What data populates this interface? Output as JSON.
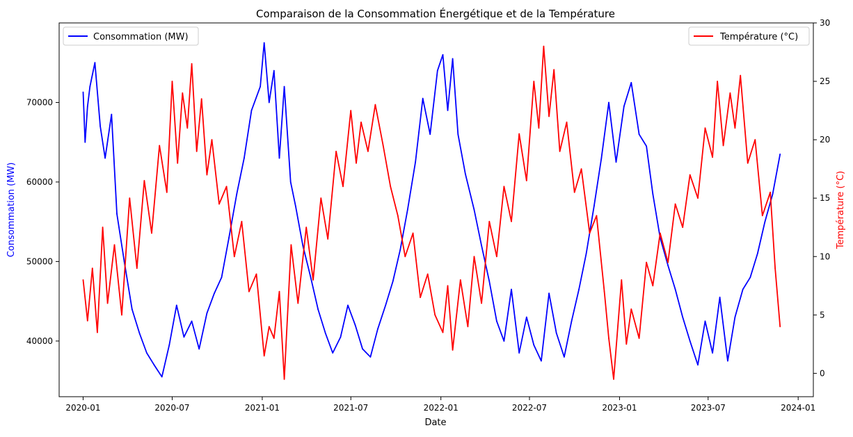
{
  "chart_data": {
    "type": "line",
    "title": "Comparaison de la Consommation Énergétique et de la Température",
    "xlabel": "Date",
    "ylabel_left": "Consommation (MW)",
    "ylabel_right": "Température (°C)",
    "x_ticks": [
      "2020-01",
      "2020-07",
      "2021-01",
      "2021-07",
      "2022-01",
      "2022-07",
      "2023-01",
      "2023-07",
      "2024-01"
    ],
    "y_left_ticks": [
      40000,
      50000,
      60000,
      70000
    ],
    "y_right_ticks": [
      0,
      5,
      10,
      15,
      20,
      25,
      30
    ],
    "x_range": [
      "2019-11-13",
      "2024-02-01"
    ],
    "y_left_range": [
      33000,
      80000
    ],
    "y_right_range": [
      -2,
      30
    ],
    "grid": false,
    "legend_left": {
      "label": "Consommation (MW)",
      "placement": "upper left"
    },
    "legend_right": {
      "label": "Température (°C)",
      "placement": "upper right"
    },
    "colors": {
      "consumption": "#0000ff",
      "temperature": "#ff0000"
    },
    "series": [
      {
        "name": "Consommation (MW)",
        "axis": "left",
        "color": "#0000ff",
        "values": [
          [
            "2020-01-01",
            71300
          ],
          [
            "2020-01-05",
            65000
          ],
          [
            "2020-01-10",
            69500
          ],
          [
            "2020-01-15",
            72000
          ],
          [
            "2020-01-25",
            75000
          ],
          [
            "2020-02-05",
            67000
          ],
          [
            "2020-02-15",
            63000
          ],
          [
            "2020-02-28",
            68500
          ],
          [
            "2020-03-10",
            56000
          ],
          [
            "2020-03-25",
            50000
          ],
          [
            "2020-04-10",
            44000
          ],
          [
            "2020-04-25",
            41000
          ],
          [
            "2020-05-10",
            38500
          ],
          [
            "2020-05-25",
            37000
          ],
          [
            "2020-06-10",
            35500
          ],
          [
            "2020-06-25",
            39500
          ],
          [
            "2020-07-10",
            44500
          ],
          [
            "2020-07-25",
            40500
          ],
          [
            "2020-08-10",
            42500
          ],
          [
            "2020-08-25",
            39000
          ],
          [
            "2020-09-10",
            43500
          ],
          [
            "2020-09-25",
            46000
          ],
          [
            "2020-10-10",
            48000
          ],
          [
            "2020-10-25",
            53000
          ],
          [
            "2020-11-10",
            58500
          ],
          [
            "2020-11-25",
            63000
          ],
          [
            "2020-12-10",
            69000
          ],
          [
            "2020-12-28",
            72000
          ],
          [
            "2021-01-05",
            77500
          ],
          [
            "2021-01-15",
            70000
          ],
          [
            "2021-01-25",
            74000
          ],
          [
            "2021-02-05",
            63000
          ],
          [
            "2021-02-15",
            72000
          ],
          [
            "2021-02-28",
            60000
          ],
          [
            "2021-03-10",
            57000
          ],
          [
            "2021-03-25",
            52000
          ],
          [
            "2021-04-10",
            48000
          ],
          [
            "2021-04-25",
            44000
          ],
          [
            "2021-05-10",
            41000
          ],
          [
            "2021-05-25",
            38500
          ],
          [
            "2021-06-10",
            40500
          ],
          [
            "2021-06-25",
            44500
          ],
          [
            "2021-07-10",
            42000
          ],
          [
            "2021-07-25",
            39000
          ],
          [
            "2021-08-10",
            38000
          ],
          [
            "2021-08-25",
            41500
          ],
          [
            "2021-09-10",
            44500
          ],
          [
            "2021-09-25",
            47500
          ],
          [
            "2021-10-10",
            51500
          ],
          [
            "2021-10-25",
            56500
          ],
          [
            "2021-11-10",
            62500
          ],
          [
            "2021-11-25",
            70500
          ],
          [
            "2021-12-10",
            66000
          ],
          [
            "2021-12-25",
            74000
          ],
          [
            "2022-01-05",
            76000
          ],
          [
            "2022-01-15",
            69000
          ],
          [
            "2022-01-25",
            75500
          ],
          [
            "2022-02-05",
            66000
          ],
          [
            "2022-02-20",
            61000
          ],
          [
            "2022-03-10",
            56500
          ],
          [
            "2022-03-25",
            52000
          ],
          [
            "2022-04-10",
            47500
          ],
          [
            "2022-04-25",
            42500
          ],
          [
            "2022-05-10",
            40000
          ],
          [
            "2022-05-25",
            46500
          ],
          [
            "2022-06-10",
            38500
          ],
          [
            "2022-06-25",
            43000
          ],
          [
            "2022-07-10",
            39500
          ],
          [
            "2022-07-25",
            37500
          ],
          [
            "2022-08-10",
            46000
          ],
          [
            "2022-08-25",
            41000
          ],
          [
            "2022-09-10",
            38000
          ],
          [
            "2022-09-25",
            42500
          ],
          [
            "2022-10-10",
            46500
          ],
          [
            "2022-10-25",
            51000
          ],
          [
            "2022-11-10",
            57000
          ],
          [
            "2022-11-25",
            63000
          ],
          [
            "2022-12-10",
            70000
          ],
          [
            "2022-12-25",
            62500
          ],
          [
            "2023-01-10",
            69500
          ],
          [
            "2023-01-25",
            72500
          ],
          [
            "2023-02-10",
            66000
          ],
          [
            "2023-02-25",
            64500
          ],
          [
            "2023-03-10",
            58500
          ],
          [
            "2023-03-25",
            53000
          ],
          [
            "2023-04-10",
            49500
          ],
          [
            "2023-04-25",
            46500
          ],
          [
            "2023-05-10",
            43000
          ],
          [
            "2023-05-25",
            40000
          ],
          [
            "2023-06-10",
            37000
          ],
          [
            "2023-06-25",
            42500
          ],
          [
            "2023-07-10",
            38500
          ],
          [
            "2023-07-25",
            45500
          ],
          [
            "2023-08-10",
            37500
          ],
          [
            "2023-08-25",
            43000
          ],
          [
            "2023-09-10",
            46500
          ],
          [
            "2023-09-25",
            48000
          ],
          [
            "2023-10-10",
            51000
          ],
          [
            "2023-10-25",
            55000
          ],
          [
            "2023-11-10",
            58500
          ],
          [
            "2023-11-25",
            63500
          ]
        ]
      },
      {
        "name": "Température (°C)",
        "axis": "right",
        "color": "#ff0000",
        "values": [
          [
            "2020-01-01",
            8
          ],
          [
            "2020-01-10",
            4.5
          ],
          [
            "2020-01-20",
            9
          ],
          [
            "2020-01-30",
            3.5
          ],
          [
            "2020-02-10",
            12.5
          ],
          [
            "2020-02-20",
            6
          ],
          [
            "2020-03-05",
            11
          ],
          [
            "2020-03-20",
            5
          ],
          [
            "2020-04-05",
            15
          ],
          [
            "2020-04-20",
            9
          ],
          [
            "2020-05-05",
            16.5
          ],
          [
            "2020-05-20",
            12
          ],
          [
            "2020-06-05",
            19.5
          ],
          [
            "2020-06-20",
            15.5
          ],
          [
            "2020-07-01",
            25
          ],
          [
            "2020-07-12",
            18
          ],
          [
            "2020-07-22",
            24
          ],
          [
            "2020-08-01",
            21
          ],
          [
            "2020-08-10",
            26.5
          ],
          [
            "2020-08-20",
            19
          ],
          [
            "2020-08-30",
            23.5
          ],
          [
            "2020-09-10",
            17
          ],
          [
            "2020-09-20",
            20
          ],
          [
            "2020-10-05",
            14.5
          ],
          [
            "2020-10-20",
            16
          ],
          [
            "2020-11-05",
            10
          ],
          [
            "2020-11-20",
            13
          ],
          [
            "2020-12-05",
            7
          ],
          [
            "2020-12-20",
            8.5
          ],
          [
            "2021-01-05",
            1.5
          ],
          [
            "2021-01-15",
            4
          ],
          [
            "2021-01-25",
            3
          ],
          [
            "2021-02-05",
            7
          ],
          [
            "2021-02-15",
            -0.5
          ],
          [
            "2021-03-01",
            11
          ],
          [
            "2021-03-15",
            6
          ],
          [
            "2021-04-01",
            12.5
          ],
          [
            "2021-04-15",
            8
          ],
          [
            "2021-05-01",
            15
          ],
          [
            "2021-05-15",
            11.5
          ],
          [
            "2021-06-01",
            19
          ],
          [
            "2021-06-15",
            16
          ],
          [
            "2021-07-01",
            22.5
          ],
          [
            "2021-07-12",
            18
          ],
          [
            "2021-07-22",
            21.5
          ],
          [
            "2021-08-05",
            19
          ],
          [
            "2021-08-20",
            23
          ],
          [
            "2021-09-05",
            19.5
          ],
          [
            "2021-09-20",
            16
          ],
          [
            "2021-10-05",
            13.5
          ],
          [
            "2021-10-20",
            10
          ],
          [
            "2021-11-05",
            12
          ],
          [
            "2021-11-20",
            6.5
          ],
          [
            "2021-12-05",
            8.5
          ],
          [
            "2021-12-20",
            5
          ],
          [
            "2022-01-05",
            3.5
          ],
          [
            "2022-01-15",
            7.5
          ],
          [
            "2022-01-25",
            2
          ],
          [
            "2022-02-10",
            8
          ],
          [
            "2022-02-25",
            4
          ],
          [
            "2022-03-10",
            10
          ],
          [
            "2022-03-25",
            6
          ],
          [
            "2022-04-10",
            13
          ],
          [
            "2022-04-25",
            10
          ],
          [
            "2022-05-10",
            16
          ],
          [
            "2022-05-25",
            13
          ],
          [
            "2022-06-10",
            20.5
          ],
          [
            "2022-06-25",
            16.5
          ],
          [
            "2022-07-10",
            25
          ],
          [
            "2022-07-20",
            21
          ],
          [
            "2022-07-30",
            28
          ],
          [
            "2022-08-10",
            22
          ],
          [
            "2022-08-20",
            26
          ],
          [
            "2022-09-01",
            19
          ],
          [
            "2022-09-15",
            21.5
          ],
          [
            "2022-10-01",
            15.5
          ],
          [
            "2022-10-15",
            17.5
          ],
          [
            "2022-11-01",
            12
          ],
          [
            "2022-11-15",
            13.5
          ],
          [
            "2022-12-01",
            7
          ],
          [
            "2022-12-10",
            3
          ],
          [
            "2022-12-20",
            -0.5
          ],
          [
            "2023-01-05",
            8
          ],
          [
            "2023-01-15",
            2.5
          ],
          [
            "2023-01-25",
            5.5
          ],
          [
            "2023-02-10",
            3
          ],
          [
            "2023-02-25",
            9.5
          ],
          [
            "2023-03-10",
            7.5
          ],
          [
            "2023-03-25",
            12
          ],
          [
            "2023-04-10",
            9.5
          ],
          [
            "2023-04-25",
            14.5
          ],
          [
            "2023-05-10",
            12.5
          ],
          [
            "2023-05-25",
            17
          ],
          [
            "2023-06-10",
            15
          ],
          [
            "2023-06-25",
            21
          ],
          [
            "2023-07-10",
            18.5
          ],
          [
            "2023-07-20",
            25
          ],
          [
            "2023-08-01",
            19.5
          ],
          [
            "2023-08-15",
            24
          ],
          [
            "2023-08-25",
            21
          ],
          [
            "2023-09-05",
            25.5
          ],
          [
            "2023-09-20",
            18
          ],
          [
            "2023-10-05",
            20
          ],
          [
            "2023-10-20",
            13.5
          ],
          [
            "2023-11-05",
            15.5
          ],
          [
            "2023-11-15",
            9
          ],
          [
            "2023-11-25",
            4
          ]
        ]
      }
    ]
  }
}
